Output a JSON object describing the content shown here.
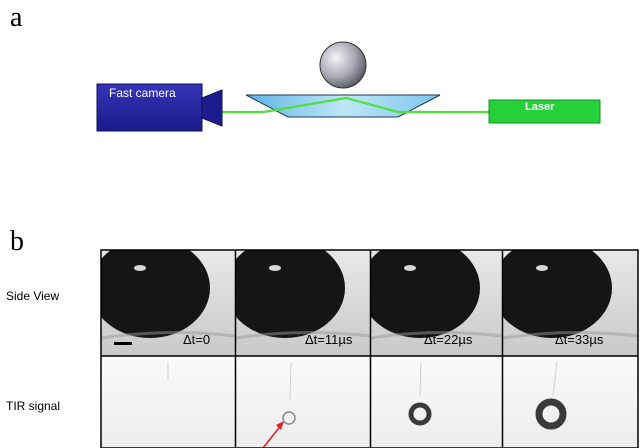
{
  "panel_a": {
    "label": "a",
    "camera_label": "Fast camera",
    "laser_label": "Laser",
    "colors": {
      "camera": "#2424a6",
      "laser": "#27d13a",
      "beam": "#4fe03c",
      "prism": "#8fd2f2",
      "sphere": "#8d8e99"
    }
  },
  "panel_b": {
    "label": "b",
    "rows": {
      "side_view": "Side View",
      "tir_signal": "TIR signal"
    },
    "frames": [
      {
        "time_label": "Δt=0",
        "tir_ring_size": 0
      },
      {
        "time_label": "Δt=11µs",
        "tir_ring_size": 1
      },
      {
        "time_label": "Δt=22µs",
        "tir_ring_size": 2
      },
      {
        "time_label": "Δt=33µs",
        "tir_ring_size": 3
      }
    ],
    "colors": {
      "drop": "#141414",
      "arrow": "#e0202a",
      "ring": "#3a3a3a"
    }
  }
}
